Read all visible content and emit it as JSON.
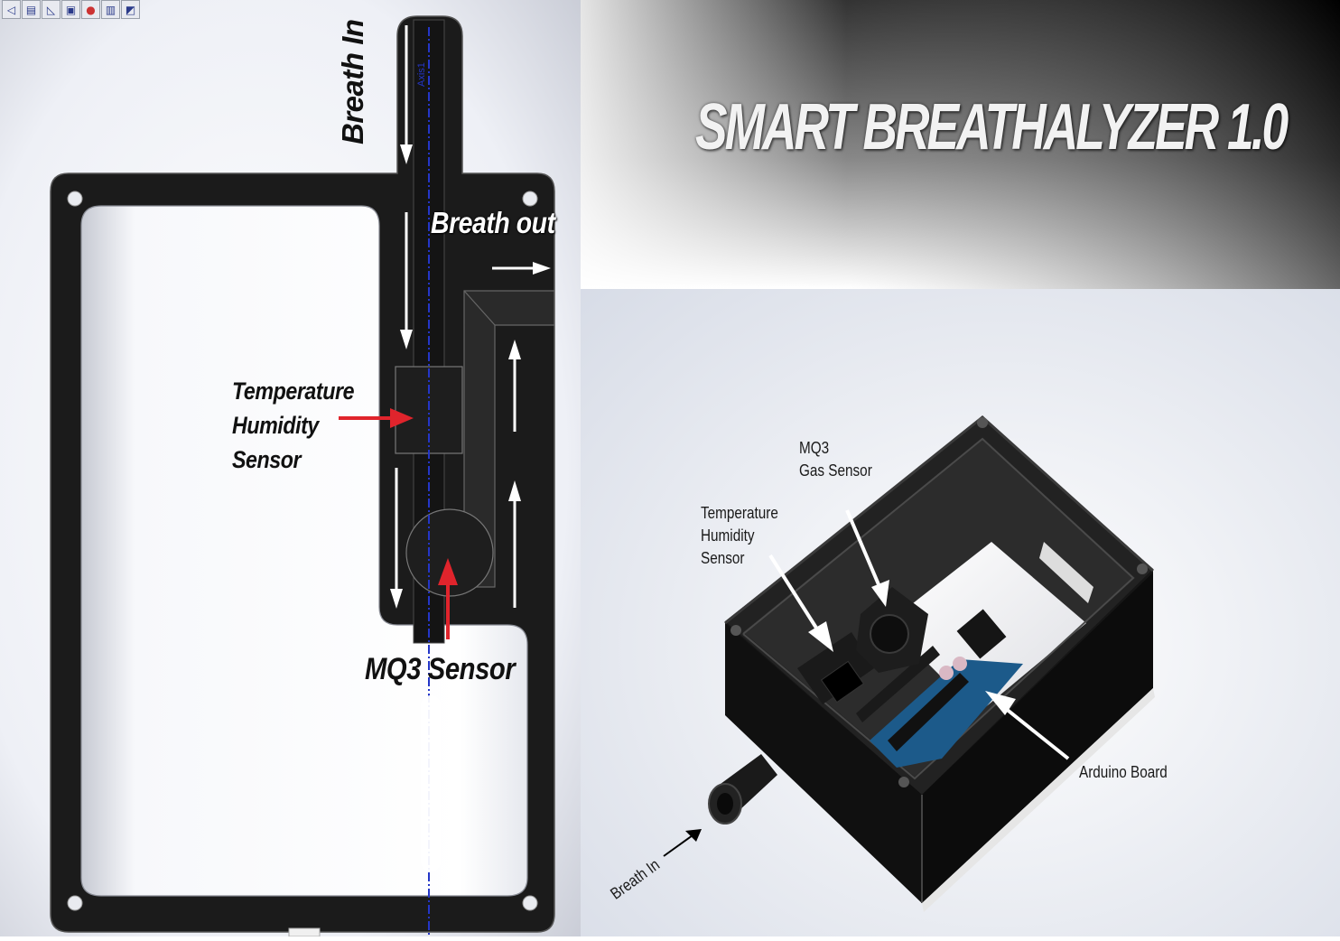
{
  "toolbar": {
    "icons": [
      "view-back-icon",
      "section-view-icon",
      "sketch-icon",
      "display-style-icon",
      "appearance-icon",
      "scene-icon",
      "view-settings-icon"
    ]
  },
  "left_diagram": {
    "breath_in_label": "Breath In",
    "breath_out_label": "Breath out",
    "temp_sensor_label": [
      "Temperature",
      "Humidity",
      "Sensor"
    ],
    "mq3_label": "MQ3 Sensor",
    "axis_label": "Axis1"
  },
  "title": "SMART BREATHALYZER 1.0",
  "right_diagram": {
    "mq3_label": [
      "MQ3",
      "Gas Sensor"
    ],
    "temp_sensor_label": [
      "Temperature",
      "Humidity",
      "Sensor"
    ],
    "arduino_label": "Arduino Board",
    "breath_in_label": "Breath In"
  },
  "colors": {
    "enclosure": "#1b1b1b",
    "arrow_red": "#e0242c",
    "arrow_white": "#ffffff",
    "axis_blue": "#2436c8",
    "board": "#1c5a8a"
  }
}
